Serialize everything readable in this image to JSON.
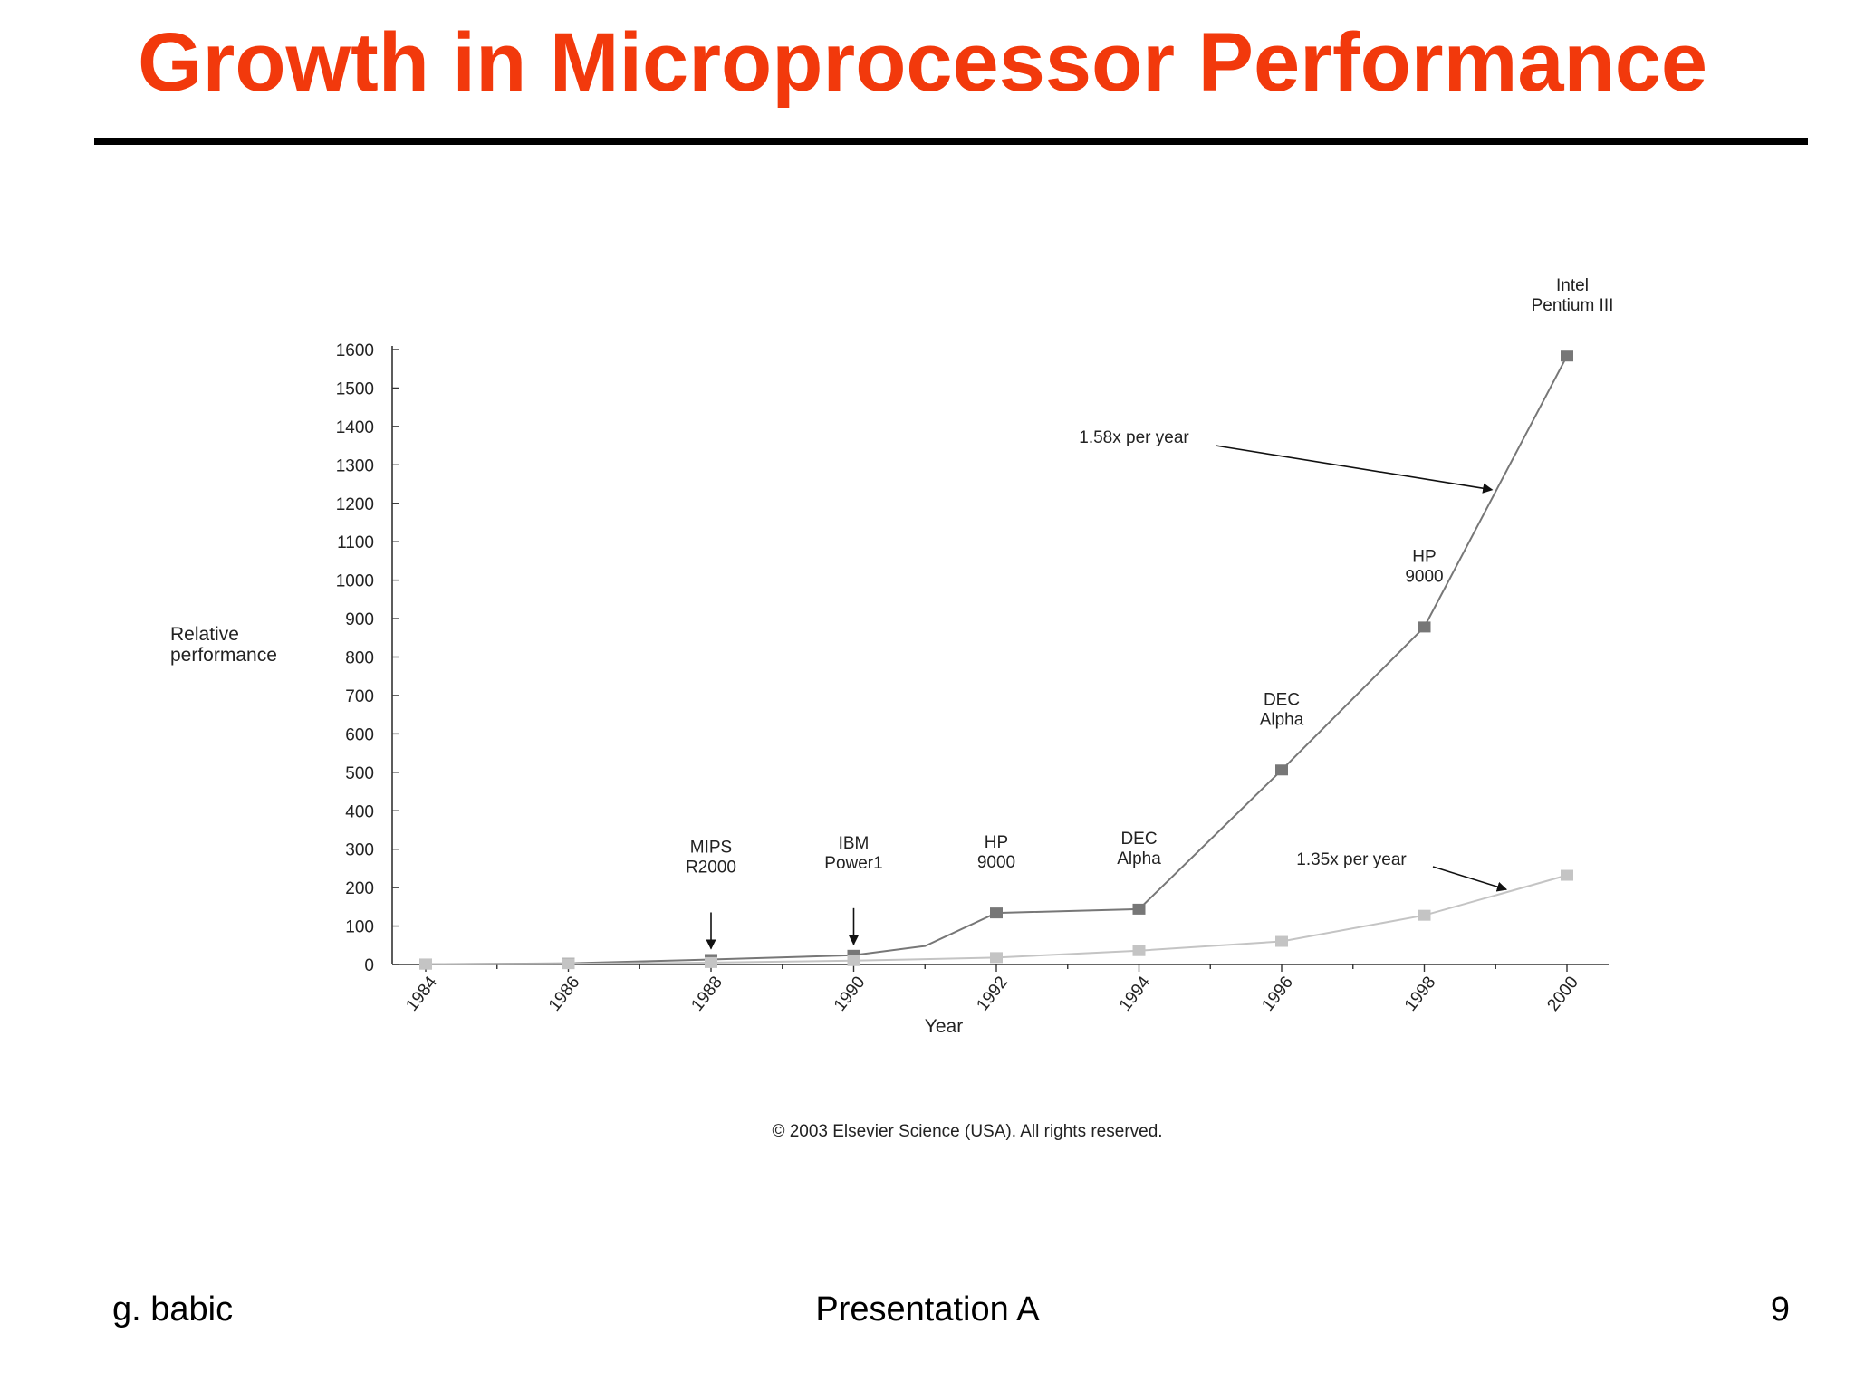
{
  "slide": {
    "title": "Growth in Microprocessor Performance",
    "copyright": "© 2003 Elsevier Science (USA). All rights reserved.",
    "footer_left": "g. babic",
    "footer_center": "Presentation A",
    "footer_right": "9"
  },
  "colors": {
    "title": "#f2390c",
    "series_fast": "#777777",
    "series_slow": "#c4c4c4",
    "axis": "#333333"
  },
  "chart_data": {
    "type": "line",
    "title": "",
    "xlabel": "Year",
    "ylabel_lines": [
      "Relative",
      "performance"
    ],
    "xlim": [
      1984,
      2000
    ],
    "ylim": [
      0,
      1600
    ],
    "x_ticks": [
      "1984",
      "1986",
      "1988",
      "1990",
      "1992",
      "1994",
      "1996",
      "1998",
      "2000"
    ],
    "y_ticks": [
      "0",
      "100",
      "200",
      "300",
      "400",
      "500",
      "600",
      "700",
      "800",
      "900",
      "1000",
      "1100",
      "1200",
      "1300",
      "1400",
      "1500",
      "1600"
    ],
    "series": [
      {
        "points": [
          {
            "x": 1984,
            "y": 1,
            "marker": true
          },
          {
            "x": 1986,
            "y": 3,
            "marker": true
          },
          {
            "x": 1988,
            "y": 13,
            "marker": true
          },
          {
            "x": 1990,
            "y": 24,
            "marker": true
          },
          {
            "x": 1991,
            "y": 48,
            "marker": false
          },
          {
            "x": 1992,
            "y": 134,
            "marker": true
          },
          {
            "x": 1994,
            "y": 144,
            "marker": true
          },
          {
            "x": 1996,
            "y": 506,
            "marker": true
          },
          {
            "x": 1998,
            "y": 878,
            "marker": true
          },
          {
            "x": 2000,
            "y": 1583,
            "marker": true
          }
        ]
      },
      {
        "points": [
          {
            "x": 1984,
            "y": 1,
            "marker": true
          },
          {
            "x": 1986,
            "y": 2,
            "marker": true
          },
          {
            "x": 1988,
            "y": 5,
            "marker": true
          },
          {
            "x": 1990,
            "y": 10,
            "marker": true
          },
          {
            "x": 1992,
            "y": 18,
            "marker": true
          },
          {
            "x": 1994,
            "y": 36,
            "marker": true
          },
          {
            "x": 1996,
            "y": 60,
            "marker": true
          },
          {
            "x": 1998,
            "y": 128,
            "marker": true
          },
          {
            "x": 2000,
            "y": 232,
            "marker": true
          }
        ]
      }
    ],
    "annotations": [
      {
        "lines": [
          "MIPS",
          "R2000"
        ],
        "x": 1988,
        "y": 13,
        "arrow": true
      },
      {
        "lines": [
          "IBM",
          "Power1"
        ],
        "x": 1990,
        "y": 24,
        "arrow": true
      },
      {
        "lines": [
          "HP",
          "9000"
        ],
        "x": 1992,
        "y": 134,
        "arrow": false
      },
      {
        "lines": [
          "DEC",
          "Alpha"
        ],
        "x": 1994,
        "y": 144,
        "arrow": false
      },
      {
        "lines": [
          "DEC",
          "Alpha"
        ],
        "x": 1996,
        "y": 506,
        "arrow": false
      },
      {
        "lines": [
          "HP",
          "9000"
        ],
        "x": 1998,
        "y": 878,
        "arrow": false
      },
      {
        "lines": [
          "Intel",
          "Pentium III"
        ],
        "x": 2000,
        "y": 1583,
        "arrow": false
      }
    ],
    "rate_labels": [
      {
        "text": "1.58x per year",
        "series": 0
      },
      {
        "text": "1.35x per year",
        "series": 1
      }
    ]
  }
}
